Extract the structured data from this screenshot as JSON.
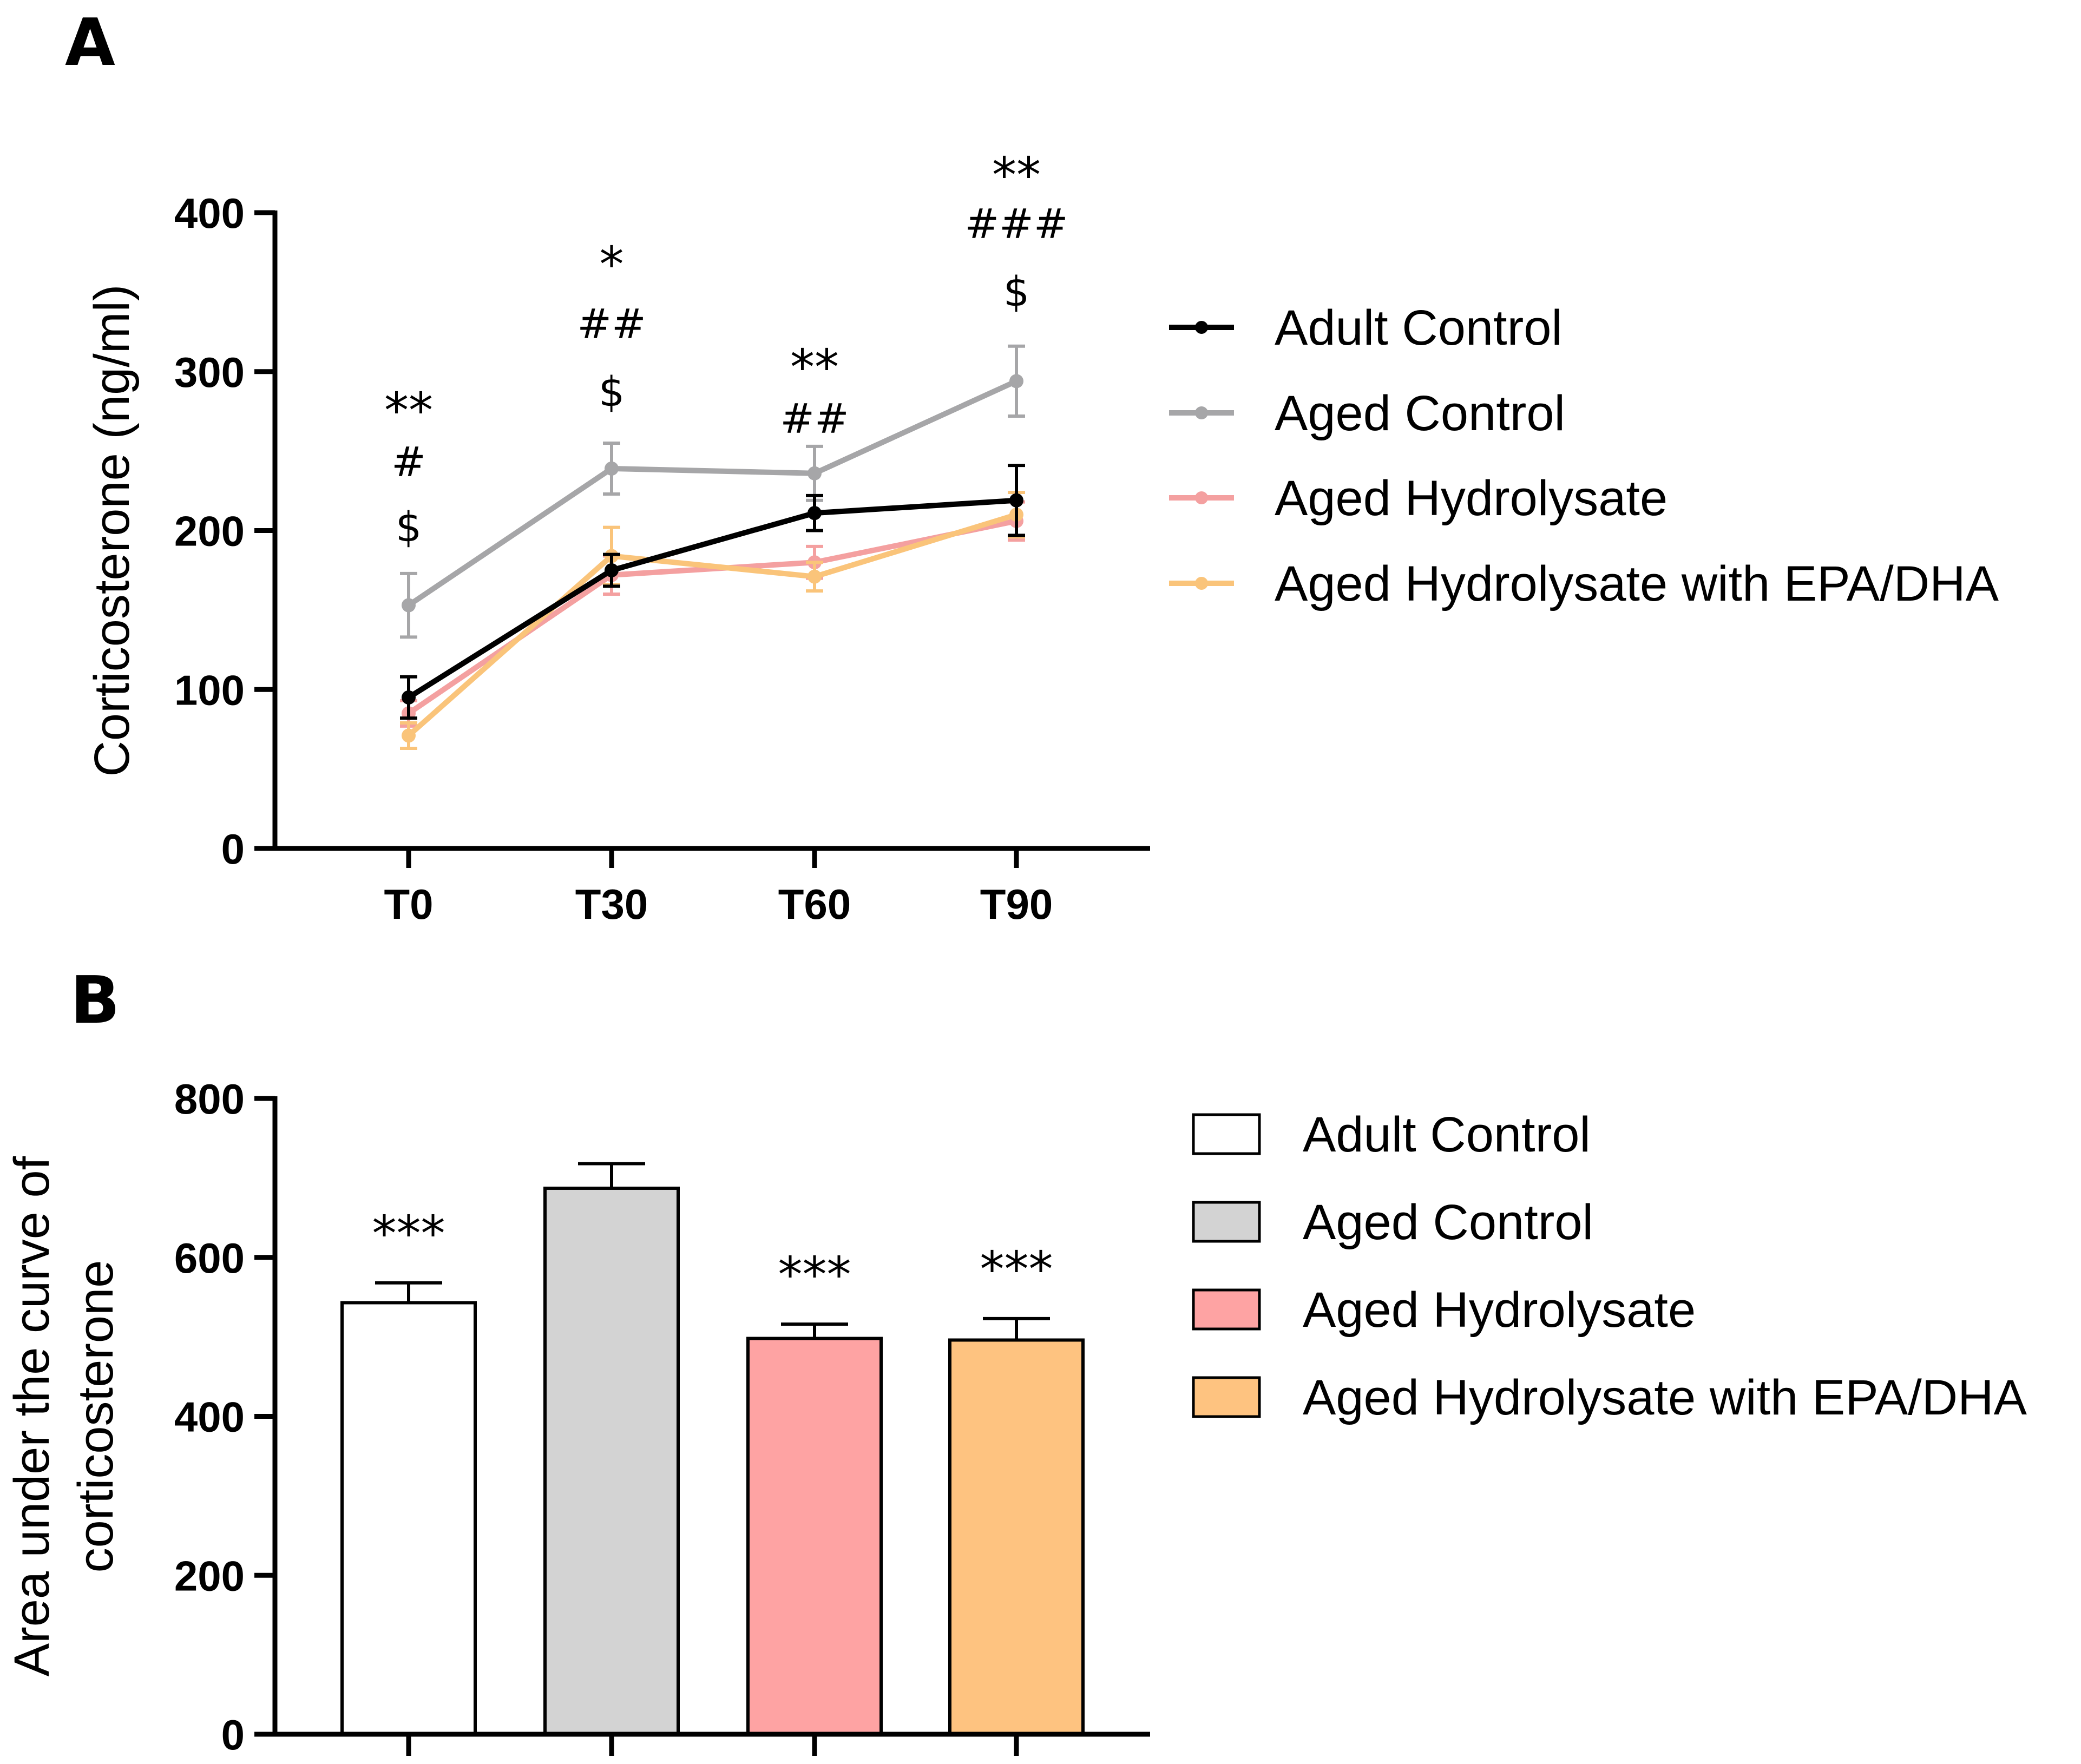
{
  "figure": {
    "panel_a_letter": "A",
    "panel_b_letter": "B"
  },
  "chart_data": [
    {
      "type": "line",
      "panel": "A",
      "ylabel": "Corticosterone (ng/ml)",
      "xlabel": "",
      "categories": [
        "T0",
        "T30",
        "T60",
        "T90"
      ],
      "ylim": [
        0,
        400
      ],
      "yticks": [
        0,
        100,
        200,
        300,
        400
      ],
      "legend_position": "right",
      "series": [
        {
          "name": "Adult Control",
          "color": "#000000",
          "values": [
            95,
            175,
            211,
            219
          ],
          "errors": [
            13,
            10,
            11,
            22
          ]
        },
        {
          "name": "Aged Control",
          "color": "#a6a6a8",
          "values": [
            153,
            239,
            236,
            294
          ],
          "errors": [
            20,
            16,
            17,
            22
          ]
        },
        {
          "name": "Aged Hydrolysate",
          "color": "#f4a0a0",
          "values": [
            85,
            172,
            180,
            206
          ],
          "errors": [
            8,
            12,
            10,
            12
          ]
        },
        {
          "name": "Aged Hydrolysate with EPA/DHA",
          "color": "#fac47a",
          "values": [
            71,
            184,
            171,
            210
          ],
          "errors": [
            8,
            18,
            9,
            14
          ]
        }
      ],
      "annotations": [
        {
          "category": "T0",
          "lines": [
            "**",
            "#",
            "$"
          ]
        },
        {
          "category": "T30",
          "lines": [
            "*",
            "##",
            "$"
          ]
        },
        {
          "category": "T60",
          "lines": [
            "**",
            "##"
          ]
        },
        {
          "category": "T90",
          "lines": [
            "**",
            "###",
            "$"
          ]
        }
      ]
    },
    {
      "type": "bar",
      "panel": "B",
      "ylabel_lines": [
        "Area under the curve of",
        "corticosterone"
      ],
      "ylim": [
        0,
        800
      ],
      "yticks": [
        0,
        200,
        400,
        600,
        800
      ],
      "legend_position": "right",
      "categories": [
        "Adult Control",
        "Aged Control",
        "Aged Hydrolysate",
        "Aged Hydrolysate with EPA/DHA"
      ],
      "colors": [
        "#ffffff",
        "#d3d3d3",
        "#fea3a3",
        "#fec380"
      ],
      "values": [
        543,
        687,
        498,
        496
      ],
      "errors": [
        25,
        31,
        18,
        27
      ],
      "annotations": [
        "***",
        "",
        "***",
        "***"
      ]
    }
  ]
}
